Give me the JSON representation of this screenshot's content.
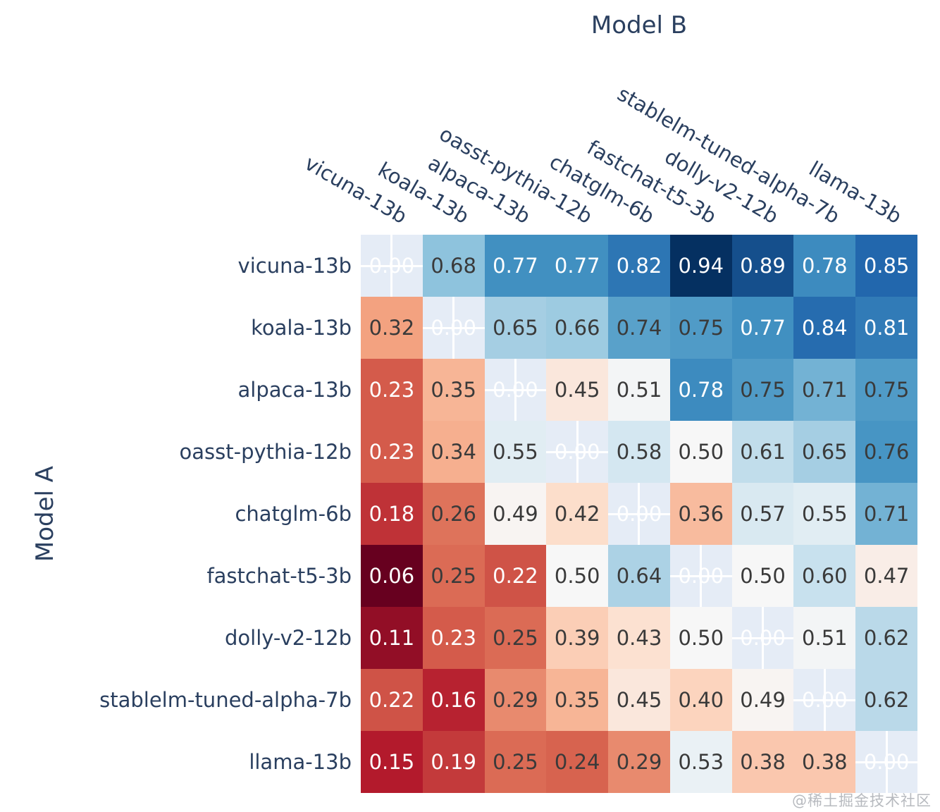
{
  "plot": {
    "x_axis_title": "Model B",
    "y_axis_title": "Model A",
    "watermark": "@稀土掘金技术社区"
  },
  "chart_data": {
    "type": "heatmap",
    "title": "",
    "xlabel": "Model B",
    "ylabel": "Model A",
    "x_categories": [
      "vicuna-13b",
      "koala-13b",
      "alpaca-13b",
      "oasst-pythia-12b",
      "chatglm-6b",
      "fastchat-t5-3b",
      "dolly-v2-12b",
      "stablelm-tuned-alpha-7b",
      "llama-13b"
    ],
    "y_categories": [
      "vicuna-13b",
      "koala-13b",
      "alpaca-13b",
      "oasst-pythia-12b",
      "chatglm-6b",
      "fastchat-t5-3b",
      "dolly-v2-12b",
      "stablelm-tuned-alpha-7b",
      "llama-13b"
    ],
    "matrix": [
      [
        0.0,
        0.68,
        0.77,
        0.77,
        0.82,
        0.94,
        0.89,
        0.78,
        0.85
      ],
      [
        0.32,
        0.0,
        0.65,
        0.66,
        0.74,
        0.75,
        0.77,
        0.84,
        0.81
      ],
      [
        0.23,
        0.35,
        0.0,
        0.45,
        0.51,
        0.78,
        0.75,
        0.71,
        0.75
      ],
      [
        0.23,
        0.34,
        0.55,
        0.0,
        0.58,
        0.5,
        0.61,
        0.65,
        0.76
      ],
      [
        0.18,
        0.26,
        0.49,
        0.42,
        0.0,
        0.36,
        0.57,
        0.55,
        0.71
      ],
      [
        0.06,
        0.25,
        0.22,
        0.5,
        0.64,
        0.0,
        0.5,
        0.6,
        0.47
      ],
      [
        0.11,
        0.23,
        0.25,
        0.39,
        0.43,
        0.5,
        0.0,
        0.51,
        0.62
      ],
      [
        0.22,
        0.16,
        0.29,
        0.35,
        0.45,
        0.4,
        0.49,
        0.0,
        0.62
      ],
      [
        0.15,
        0.19,
        0.25,
        0.24,
        0.29,
        0.53,
        0.38,
        0.38,
        0.0
      ]
    ],
    "diagonal_masked": true,
    "diagonal_label": "0.00",
    "value_format": ".2f",
    "zmin": 0.06,
    "zmax": 0.94,
    "colorscale_name": "RdBu (low=red, high=blue)",
    "colorscale": [
      {
        "stop": 0.0,
        "color": "#67001f"
      },
      {
        "stop": 0.1,
        "color": "#b2182b"
      },
      {
        "stop": 0.2,
        "color": "#d6604d"
      },
      {
        "stop": 0.3,
        "color": "#f4a582"
      },
      {
        "stop": 0.4,
        "color": "#fddbc7"
      },
      {
        "stop": 0.5,
        "color": "#f7f7f7"
      },
      {
        "stop": 0.6,
        "color": "#d1e5f0"
      },
      {
        "stop": 0.7,
        "color": "#92c5de"
      },
      {
        "stop": 0.8,
        "color": "#4393c3"
      },
      {
        "stop": 0.9,
        "color": "#2166ac"
      },
      {
        "stop": 1.0,
        "color": "#053061"
      }
    ],
    "plot_bgcolor": "#e5ecf6",
    "gridline_color": "#ffffff",
    "axis_label_color": "#2a3f5f",
    "cell_text_dark": "#3a3a3a",
    "cell_text_light": "#ffffff",
    "legend_position": "none",
    "grid_on": true
  }
}
